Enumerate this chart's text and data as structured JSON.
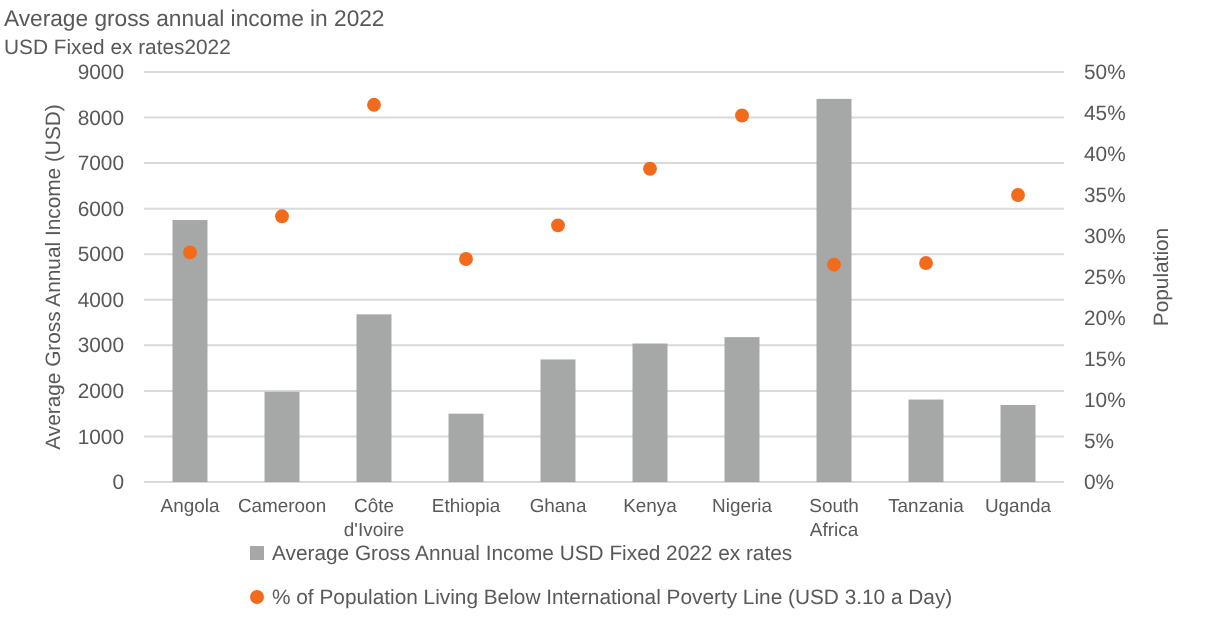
{
  "chart_data": {
    "type": "bar",
    "title": "Average gross annual income in 2022",
    "subtitle": "USD Fixed ex rates2022",
    "ylabel": "Average Gross Annual Income (USD)",
    "y2label": "Population",
    "categories": [
      "Angola",
      "Cameroon",
      "Côte d'Ivoire",
      "Ethiopia",
      "Ghana",
      "Kenya",
      "Nigeria",
      "South Africa",
      "Tanzania",
      "Uganda"
    ],
    "series": [
      {
        "name": "Average Gross Annual Income USD Fixed 2022 ex rates",
        "color": "#a5a8a7",
        "values": [
          5750,
          1980,
          3680,
          1500,
          2690,
          3040,
          3180,
          8410,
          1810,
          1690
        ]
      },
      {
        "name": "% of Population Living Below International Poverty Line (USD 3.10 a Day)",
        "type": "scatter",
        "axis": "y2",
        "color": "#f26b1d",
        "values": [
          28,
          32.4,
          46,
          27.2,
          31.3,
          38.2,
          44.7,
          26.5,
          26.7,
          35
        ]
      }
    ],
    "ylim": [
      0,
      9000
    ],
    "yticks": [
      0,
      1000,
      2000,
      3000,
      4000,
      5000,
      6000,
      7000,
      8000,
      9000
    ],
    "y2lim": [
      0,
      50
    ],
    "y2ticks": [
      {
        "value": 0,
        "label": "0%"
      },
      {
        "value": 5,
        "label": "5%"
      },
      {
        "value": 10,
        "label": "10%"
      },
      {
        "value": 15,
        "label": "15%"
      },
      {
        "value": 20,
        "label": "20%"
      },
      {
        "value": 25,
        "label": "25%"
      },
      {
        "value": 30,
        "label": "30%"
      },
      {
        "value": 35,
        "label": "35%"
      },
      {
        "value": 40,
        "label": "40%"
      },
      {
        "value": 45,
        "label": "45%"
      },
      {
        "value": 50,
        "label": "50%"
      }
    ],
    "grid": "y",
    "legend": "bottom",
    "marker": "circle"
  }
}
